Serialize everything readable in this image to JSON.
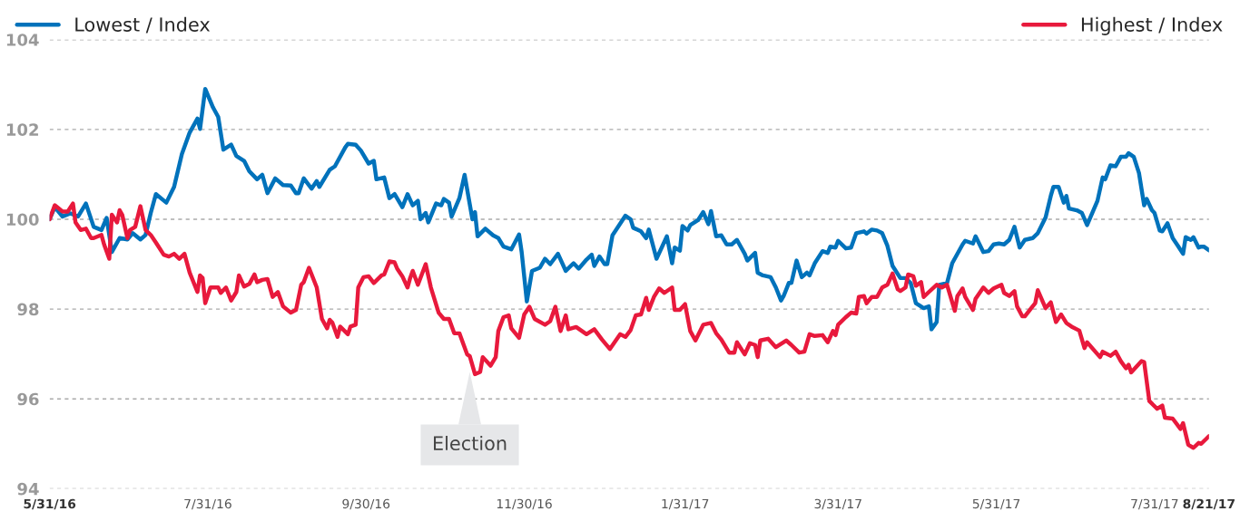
{
  "chart_data": {
    "type": "line",
    "xlim": [
      "2016-05-31",
      "2017-08-21"
    ],
    "xticks": [
      {
        "value": "2016-05-31",
        "label": "5/31/16"
      },
      {
        "value": "2016-07-31",
        "label": "7/31/16"
      },
      {
        "value": "2016-09-30",
        "label": "9/30/16"
      },
      {
        "value": "2016-11-30",
        "label": "11/30/16"
      },
      {
        "value": "2017-01-31",
        "label": "1/31/17"
      },
      {
        "value": "2017-03-31",
        "label": "3/31/17"
      },
      {
        "value": "2017-05-31",
        "label": "5/31/17"
      },
      {
        "value": "2017-07-31",
        "label": "7/31/17"
      },
      {
        "value": "2017-08-21",
        "label": "8/21/17"
      }
    ],
    "ylim": [
      94,
      104
    ],
    "yticks": [
      94,
      96,
      98,
      100,
      102,
      104
    ],
    "grid": "y",
    "legend": "top",
    "marker": "none",
    "line_style": "solid",
    "annotations": [
      {
        "text": "Election",
        "x": "2016-11-09",
        "y": 96.6
      }
    ],
    "series": [
      {
        "name": "Lowest / Index",
        "color": "#0072bb",
        "x": [
          "2016-05-31",
          "2016-06-02",
          "2016-06-05",
          "2016-06-08",
          "2016-06-11",
          "2016-06-14",
          "2016-06-17",
          "2016-06-20",
          "2016-06-22",
          "2016-06-24",
          "2016-06-27",
          "2016-06-30",
          "2016-07-02",
          "2016-07-05",
          "2016-07-07",
          "2016-07-09",
          "2016-07-11",
          "2016-07-15",
          "2016-07-18",
          "2016-07-21",
          "2016-07-24",
          "2016-07-27",
          "2016-07-28",
          "2016-07-30",
          "2016-08-02",
          "2016-08-04",
          "2016-08-06",
          "2016-08-09",
          "2016-08-11",
          "2016-08-14",
          "2016-08-16",
          "2016-08-19",
          "2016-08-21",
          "2016-08-23",
          "2016-08-26",
          "2016-08-29",
          "2016-09-01",
          "2016-09-03",
          "2016-09-04",
          "2016-09-06",
          "2016-09-09",
          "2016-09-11",
          "2016-09-12",
          "2016-09-16",
          "2016-09-18",
          "2016-09-22",
          "2016-09-23",
          "2016-09-26",
          "2016-09-28",
          "2016-10-01",
          "2016-10-03",
          "2016-10-04",
          "2016-10-07",
          "2016-10-09",
          "2016-10-11",
          "2016-10-14",
          "2016-10-16",
          "2016-10-18",
          "2016-10-20",
          "2016-10-21",
          "2016-10-23",
          "2016-10-24",
          "2016-10-27",
          "2016-10-29",
          "2016-10-30",
          "2016-11-01",
          "2016-11-02",
          "2016-11-05",
          "2016-11-07",
          "2016-11-10",
          "2016-11-11",
          "2016-11-12",
          "2016-11-15",
          "2016-11-18",
          "2016-11-20",
          "2016-11-22",
          "2016-11-25",
          "2016-11-28",
          "2016-11-29",
          "2016-12-01",
          "2016-12-03",
          "2016-12-06",
          "2016-12-08",
          "2016-12-10",
          "2016-12-13",
          "2016-12-16",
          "2016-12-19",
          "2016-12-21",
          "2016-12-24",
          "2016-12-26",
          "2016-12-27",
          "2016-12-29",
          "2016-12-31",
          "2017-01-01",
          "2017-01-03",
          "2017-01-08",
          "2017-01-10",
          "2017-01-11",
          "2017-01-14",
          "2017-01-16",
          "2017-01-17",
          "2017-01-20",
          "2017-01-24",
          "2017-01-26",
          "2017-01-27",
          "2017-01-29",
          "2017-01-30",
          "2017-02-01",
          "2017-02-02",
          "2017-02-05",
          "2017-02-07",
          "2017-02-09",
          "2017-02-10",
          "2017-02-12",
          "2017-02-14",
          "2017-02-16",
          "2017-02-18",
          "2017-02-20",
          "2017-02-23",
          "2017-02-24",
          "2017-02-27",
          "2017-02-28",
          "2017-03-02",
          "2017-03-05",
          "2017-03-07",
          "2017-03-09",
          "2017-03-10",
          "2017-03-12",
          "2017-03-13",
          "2017-03-15",
          "2017-03-17",
          "2017-03-19",
          "2017-03-20",
          "2017-03-22",
          "2017-03-25",
          "2017-03-27",
          "2017-03-28",
          "2017-03-30",
          "2017-03-31",
          "2017-04-03",
          "2017-04-05",
          "2017-04-07",
          "2017-04-10",
          "2017-04-11",
          "2017-04-13",
          "2017-04-15",
          "2017-04-17",
          "2017-04-19",
          "2017-04-21",
          "2017-04-24",
          "2017-04-26",
          "2017-04-28",
          "2017-04-30",
          "2017-05-03",
          "2017-05-05",
          "2017-05-06",
          "2017-05-08",
          "2017-05-09",
          "2017-05-12",
          "2017-05-14",
          "2017-05-18",
          "2017-05-19",
          "2017-05-22",
          "2017-05-23",
          "2017-05-26",
          "2017-05-28",
          "2017-05-30",
          "2017-06-01",
          "2017-06-03",
          "2017-06-05",
          "2017-06-07",
          "2017-06-09",
          "2017-06-11",
          "2017-06-14",
          "2017-06-16",
          "2017-06-19",
          "2017-06-21",
          "2017-06-22",
          "2017-06-24",
          "2017-06-26",
          "2017-06-27",
          "2017-06-28",
          "2017-07-01",
          "2017-07-03",
          "2017-07-05",
          "2017-07-09",
          "2017-07-11",
          "2017-07-12",
          "2017-07-14",
          "2017-07-16",
          "2017-07-18",
          "2017-07-20",
          "2017-07-21",
          "2017-07-23",
          "2017-07-25",
          "2017-07-27",
          "2017-07-28",
          "2017-07-30",
          "2017-07-31",
          "2017-08-02",
          "2017-08-03",
          "2017-08-05",
          "2017-08-07",
          "2017-08-09",
          "2017-08-11",
          "2017-08-12",
          "2017-08-14",
          "2017-08-15",
          "2017-08-17",
          "2017-08-18",
          "2017-08-19",
          "2017-08-21"
        ],
        "values": [
          100.0,
          100.27,
          100.06,
          100.13,
          100.06,
          100.35,
          99.83,
          99.76,
          100.03,
          99.27,
          99.58,
          99.55,
          99.69,
          99.55,
          99.65,
          100.14,
          100.56,
          100.37,
          100.72,
          101.45,
          101.93,
          102.24,
          102.01,
          102.9,
          102.49,
          102.28,
          101.55,
          101.66,
          101.41,
          101.3,
          101.07,
          100.89,
          100.99,
          100.58,
          100.91,
          100.76,
          100.75,
          100.58,
          100.58,
          100.91,
          100.68,
          100.85,
          100.72,
          101.1,
          101.18,
          101.6,
          101.68,
          101.66,
          101.53,
          101.24,
          101.3,
          100.89,
          100.93,
          100.47,
          100.56,
          100.27,
          100.56,
          100.31,
          100.41,
          100.0,
          100.14,
          99.93,
          100.35,
          100.31,
          100.45,
          100.37,
          100.06,
          100.47,
          100.99,
          100.0,
          100.16,
          99.62,
          99.79,
          99.64,
          99.58,
          99.39,
          99.33,
          99.66,
          99.27,
          98.17,
          98.85,
          98.92,
          99.12,
          99.0,
          99.23,
          98.85,
          99.02,
          98.9,
          99.1,
          99.21,
          98.96,
          99.17,
          99.0,
          99.0,
          99.64,
          100.08,
          100.0,
          99.81,
          99.73,
          99.58,
          99.77,
          99.12,
          99.62,
          99.02,
          99.37,
          99.3,
          99.85,
          99.75,
          99.87,
          99.98,
          100.16,
          99.89,
          100.18,
          99.62,
          99.64,
          99.44,
          99.44,
          99.54,
          99.23,
          99.08,
          99.25,
          98.81,
          98.75,
          98.71,
          98.48,
          98.19,
          98.29,
          98.58,
          98.58,
          99.08,
          98.71,
          98.81,
          98.75,
          99.02,
          99.29,
          99.25,
          99.39,
          99.37,
          99.52,
          99.35,
          99.37,
          99.69,
          99.73,
          99.68,
          99.77,
          99.75,
          99.69,
          99.41,
          98.96,
          98.69,
          98.69,
          98.58,
          98.13,
          98.02,
          98.06,
          97.55,
          97.71,
          98.54,
          98.58,
          99.02,
          99.44,
          99.52,
          99.46,
          99.62,
          99.27,
          99.29,
          99.44,
          99.46,
          99.44,
          99.54,
          99.83,
          99.37,
          99.54,
          99.58,
          99.69,
          100.04,
          100.52,
          100.72,
          100.72,
          100.37,
          100.52,
          100.24,
          100.2,
          100.14,
          99.87,
          100.41,
          100.93,
          100.89,
          101.2,
          101.18,
          101.39,
          101.39,
          101.47,
          101.39,
          101.03,
          100.31,
          100.45,
          100.2,
          100.14,
          99.75,
          99.73,
          99.91,
          99.58,
          99.41,
          99.23,
          99.6,
          99.54,
          99.6,
          99.37,
          99.39,
          99.39,
          99.31
        ]
      },
      {
        "name": "Highest / Index",
        "color": "#e8193c",
        "x": [
          "2016-05-31",
          "2016-06-02",
          "2016-06-05",
          "2016-06-07",
          "2016-06-09",
          "2016-06-10",
          "2016-06-12",
          "2016-06-14",
          "2016-06-16",
          "2016-06-17",
          "2016-06-20",
          "2016-06-21",
          "2016-06-23",
          "2016-06-24",
          "2016-06-26",
          "2016-06-27",
          "2016-06-28",
          "2016-06-30",
          "2016-07-01",
          "2016-07-03",
          "2016-07-05",
          "2016-07-07",
          "2016-07-09",
          "2016-07-11",
          "2016-07-14",
          "2016-07-16",
          "2016-07-18",
          "2016-07-20",
          "2016-07-22",
          "2016-07-24",
          "2016-07-27",
          "2016-07-28",
          "2016-07-29",
          "2016-07-30",
          "2016-08-01",
          "2016-08-04",
          "2016-08-05",
          "2016-08-07",
          "2016-08-09",
          "2016-08-11",
          "2016-08-12",
          "2016-08-14",
          "2016-08-16",
          "2016-08-18",
          "2016-08-19",
          "2016-08-21",
          "2016-08-23",
          "2016-08-25",
          "2016-08-27",
          "2016-08-29",
          "2016-09-01",
          "2016-09-03",
          "2016-09-05",
          "2016-09-06",
          "2016-09-08",
          "2016-09-11",
          "2016-09-13",
          "2016-09-15",
          "2016-09-16",
          "2016-09-17",
          "2016-09-19",
          "2016-09-20",
          "2016-09-23",
          "2016-09-24",
          "2016-09-26",
          "2016-09-27",
          "2016-09-29",
          "2016-10-01",
          "2016-10-03",
          "2016-10-06",
          "2016-10-07",
          "2016-10-09",
          "2016-10-11",
          "2016-10-12",
          "2016-10-14",
          "2016-10-16",
          "2016-10-17",
          "2016-10-18",
          "2016-10-20",
          "2016-10-23",
          "2016-10-25",
          "2016-10-28",
          "2016-10-30",
          "2016-11-01",
          "2016-11-03",
          "2016-11-05",
          "2016-11-08",
          "2016-11-09",
          "2016-11-11",
          "2016-11-13",
          "2016-11-14",
          "2016-11-17",
          "2016-11-19",
          "2016-11-20",
          "2016-11-22",
          "2016-11-24",
          "2016-11-25",
          "2016-11-28",
          "2016-11-30",
          "2016-12-02",
          "2016-12-04",
          "2016-12-08",
          "2016-12-10",
          "2016-12-12",
          "2016-12-14",
          "2016-12-16",
          "2016-12-17",
          "2016-12-20",
          "2016-12-24",
          "2016-12-27",
          "2016-12-30",
          "2017-01-02",
          "2017-01-06",
          "2017-01-08",
          "2017-01-10",
          "2017-01-12",
          "2017-01-14",
          "2017-01-16",
          "2017-01-17",
          "2017-01-19",
          "2017-01-21",
          "2017-01-23",
          "2017-01-26",
          "2017-01-27",
          "2017-01-29",
          "2017-01-31",
          "2017-02-02",
          "2017-02-04",
          "2017-02-07",
          "2017-02-10",
          "2017-02-12",
          "2017-02-14",
          "2017-02-17",
          "2017-02-19",
          "2017-02-20",
          "2017-02-23",
          "2017-02-25",
          "2017-02-27",
          "2017-02-28",
          "2017-03-01",
          "2017-03-04",
          "2017-03-07",
          "2017-03-11",
          "2017-03-13",
          "2017-03-16",
          "2017-03-18",
          "2017-03-20",
          "2017-03-22",
          "2017-03-25",
          "2017-03-27",
          "2017-03-29",
          "2017-03-30",
          "2017-03-31",
          "2017-04-03",
          "2017-04-05",
          "2017-04-07",
          "2017-04-08",
          "2017-04-10",
          "2017-04-11",
          "2017-04-13",
          "2017-04-15",
          "2017-04-17",
          "2017-04-19",
          "2017-04-21",
          "2017-04-23",
          "2017-04-24",
          "2017-04-26",
          "2017-04-27",
          "2017-04-29",
          "2017-04-30",
          "2017-05-02",
          "2017-05-03",
          "2017-05-05",
          "2017-05-08",
          "2017-05-10",
          "2017-05-12",
          "2017-05-15",
          "2017-05-16",
          "2017-05-18",
          "2017-05-19",
          "2017-05-22",
          "2017-05-23",
          "2017-05-26",
          "2017-05-28",
          "2017-05-30",
          "2017-06-02",
          "2017-06-03",
          "2017-06-05",
          "2017-06-07",
          "2017-06-08",
          "2017-06-10",
          "2017-06-11",
          "2017-06-14",
          "2017-06-15",
          "2017-06-16",
          "2017-06-19",
          "2017-06-21",
          "2017-06-23",
          "2017-06-25",
          "2017-06-27",
          "2017-06-29",
          "2017-07-02",
          "2017-07-04",
          "2017-07-05",
          "2017-07-10",
          "2017-07-11",
          "2017-07-14",
          "2017-07-16",
          "2017-07-18",
          "2017-07-20",
          "2017-07-21",
          "2017-07-22",
          "2017-07-26",
          "2017-07-27",
          "2017-07-29",
          "2017-08-01",
          "2017-08-03",
          "2017-08-04",
          "2017-08-07",
          "2017-08-10",
          "2017-08-11",
          "2017-08-13",
          "2017-08-15",
          "2017-08-17",
          "2017-08-18",
          "2017-08-21"
        ],
        "values": [
          100.0,
          100.31,
          100.17,
          100.17,
          100.35,
          99.93,
          99.76,
          99.79,
          99.58,
          99.58,
          99.65,
          99.44,
          99.12,
          100.1,
          99.93,
          100.2,
          100.1,
          99.58,
          99.76,
          99.83,
          100.29,
          99.76,
          99.65,
          99.48,
          99.21,
          99.17,
          99.23,
          99.12,
          99.23,
          98.81,
          98.38,
          98.75,
          98.69,
          98.13,
          98.48,
          98.48,
          98.36,
          98.48,
          98.19,
          98.38,
          98.75,
          98.5,
          98.56,
          98.77,
          98.6,
          98.65,
          98.67,
          98.27,
          98.38,
          98.06,
          97.92,
          97.98,
          98.54,
          98.6,
          98.92,
          98.48,
          97.78,
          97.57,
          97.76,
          97.7,
          97.38,
          97.61,
          97.44,
          97.61,
          97.65,
          98.48,
          98.71,
          98.73,
          98.58,
          98.75,
          98.77,
          99.06,
          99.04,
          98.9,
          98.73,
          98.48,
          98.69,
          98.85,
          98.54,
          99.0,
          98.48,
          97.92,
          97.78,
          97.78,
          97.46,
          97.46,
          96.99,
          96.95,
          96.55,
          96.6,
          96.93,
          96.74,
          96.93,
          97.51,
          97.82,
          97.86,
          97.57,
          97.36,
          97.88,
          98.05,
          97.78,
          97.65,
          97.73,
          98.05,
          97.51,
          97.86,
          97.55,
          97.6,
          97.44,
          97.55,
          97.32,
          97.11,
          97.44,
          97.38,
          97.53,
          97.86,
          97.88,
          98.25,
          97.98,
          98.27,
          98.46,
          98.36,
          98.48,
          97.98,
          97.98,
          98.11,
          97.51,
          97.3,
          97.65,
          97.69,
          97.46,
          97.32,
          97.03,
          97.03,
          97.26,
          96.99,
          97.24,
          97.2,
          96.93,
          97.3,
          97.34,
          97.15,
          97.3,
          97.2,
          97.03,
          97.05,
          97.44,
          97.4,
          97.42,
          97.26,
          97.51,
          97.42,
          97.65,
          97.82,
          97.92,
          97.9,
          98.27,
          98.29,
          98.13,
          98.27,
          98.27,
          98.48,
          98.54,
          98.79,
          98.44,
          98.4,
          98.48,
          98.77,
          98.73,
          98.52,
          98.6,
          98.27,
          98.38,
          98.54,
          98.48,
          98.54,
          97.96,
          98.29,
          98.46,
          98.27,
          97.98,
          98.23,
          98.48,
          98.36,
          98.46,
          98.54,
          98.36,
          98.29,
          98.4,
          98.06,
          97.84,
          97.84,
          98.06,
          98.13,
          98.42,
          98.02,
          98.15,
          97.71,
          97.88,
          97.69,
          97.61,
          97.52,
          97.13,
          97.26,
          96.93,
          97.05,
          96.96,
          97.05,
          96.84,
          96.68,
          96.76,
          96.59,
          96.84,
          96.82,
          95.95,
          95.78,
          95.85,
          95.58,
          95.56,
          95.33,
          95.46,
          94.98,
          94.91,
          95.02,
          95.0,
          95.17
        ]
      }
    ]
  }
}
